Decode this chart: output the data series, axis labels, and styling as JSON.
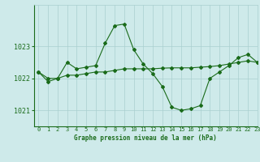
{
  "title": "Graphe pression niveau de la mer (hPa)",
  "background_color": "#ceeaea",
  "grid_color": "#aacfcf",
  "line_color": "#1a6b1a",
  "xlim": [
    -0.5,
    23
  ],
  "ylim": [
    1020.5,
    1024.3
  ],
  "yticks": [
    1021,
    1022,
    1023
  ],
  "xticks": [
    0,
    1,
    2,
    3,
    4,
    5,
    6,
    7,
    8,
    9,
    10,
    11,
    12,
    13,
    14,
    15,
    16,
    17,
    18,
    19,
    20,
    21,
    22,
    23
  ],
  "series1_x": [
    0,
    1,
    2,
    3,
    4,
    5,
    6,
    7,
    8,
    9,
    10,
    11,
    12,
    13,
    14,
    15,
    16,
    17,
    18,
    19,
    20,
    21,
    22,
    23
  ],
  "series1_y": [
    1022.2,
    1021.9,
    1022.0,
    1022.5,
    1022.3,
    1022.35,
    1022.4,
    1023.1,
    1023.65,
    1023.7,
    1022.9,
    1022.45,
    1022.15,
    1021.75,
    1021.1,
    1021.0,
    1021.05,
    1021.15,
    1022.0,
    1022.2,
    1022.4,
    1022.65,
    1022.75,
    1022.5
  ],
  "series2_x": [
    0,
    1,
    2,
    3,
    4,
    5,
    6,
    7,
    8,
    9,
    10,
    11,
    12,
    13,
    14,
    15,
    16,
    17,
    18,
    19,
    20,
    21,
    22,
    23
  ],
  "series2_y": [
    1022.2,
    1022.0,
    1022.0,
    1022.1,
    1022.1,
    1022.15,
    1022.2,
    1022.2,
    1022.25,
    1022.3,
    1022.3,
    1022.3,
    1022.3,
    1022.32,
    1022.33,
    1022.33,
    1022.33,
    1022.35,
    1022.37,
    1022.4,
    1022.45,
    1022.5,
    1022.55,
    1022.5
  ]
}
